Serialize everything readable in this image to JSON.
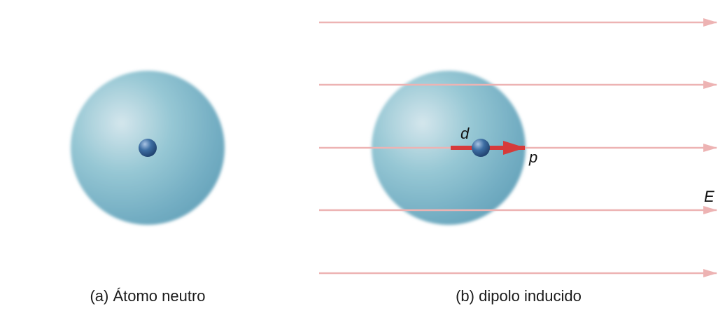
{
  "panel_a": {
    "caption": "(a) Átomo neutro"
  },
  "panel_b": {
    "caption": "(b) dipolo inducido",
    "label_d": "d",
    "label_p": "p",
    "label_E": "E"
  },
  "colors": {
    "cloud_light": "#d4e6ec",
    "cloud_mid": "#8cc2d0",
    "cloud_dark": "#6aa6bd",
    "nucleus": "#2e5e92",
    "field_line": "#edb3b3",
    "dipole_arrow": "#d63a3a"
  },
  "field_line_count": 5
}
